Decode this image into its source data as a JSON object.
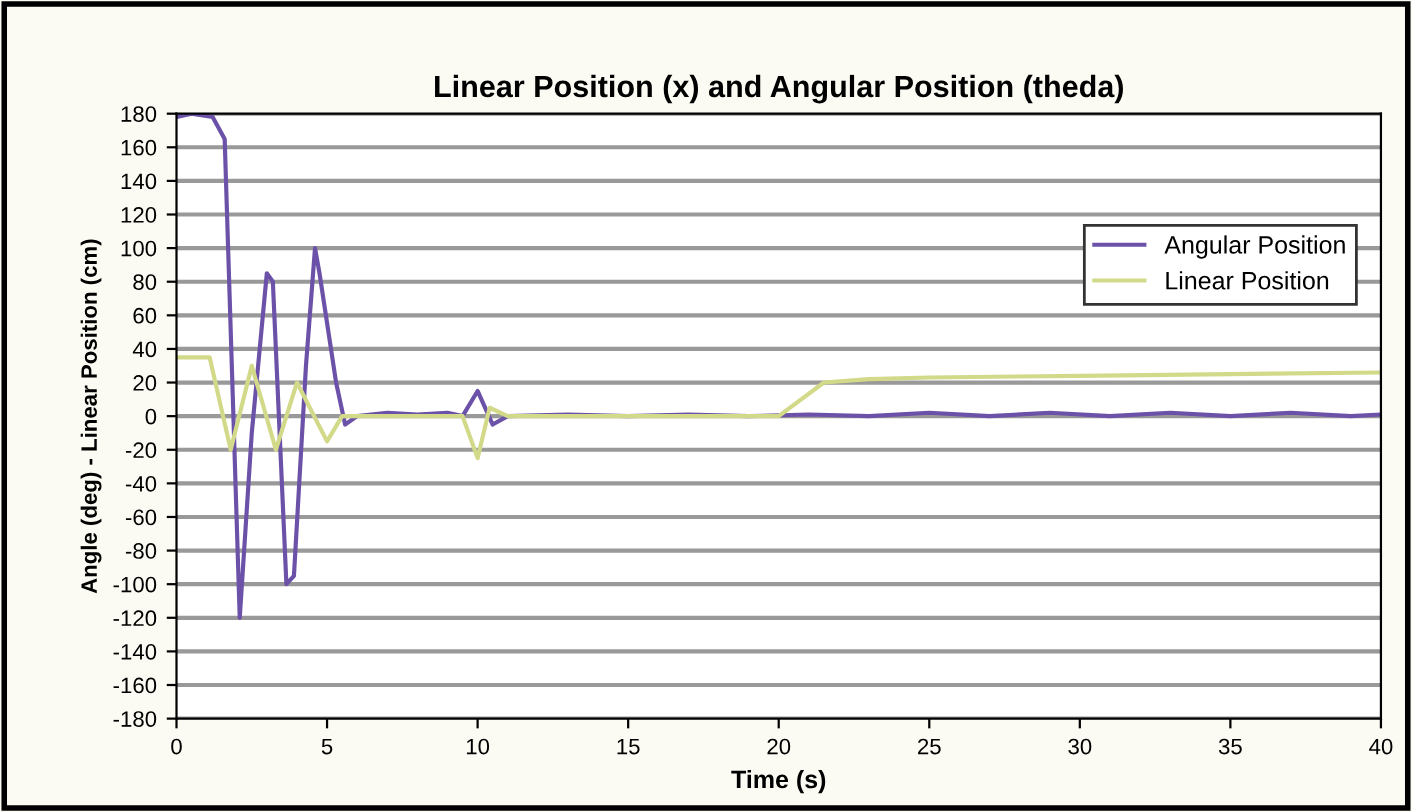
{
  "chart_data": {
    "type": "line",
    "title": "Linear Position (x) and Angular Position (theda)",
    "xlabel": "Time (s)",
    "ylabel": "Angle (deg) - Linear Position (cm)",
    "xlim": [
      0,
      40
    ],
    "xticks": [
      0,
      5,
      10,
      15,
      20,
      25,
      30,
      35,
      40
    ],
    "ylim": [
      -180,
      180
    ],
    "yticks": [
      -180,
      -160,
      -140,
      -120,
      -100,
      -80,
      -60,
      -40,
      -20,
      0,
      20,
      40,
      60,
      80,
      100,
      120,
      140,
      160,
      180
    ],
    "grid": "y",
    "legend": "right",
    "line_style": "solid",
    "marker": "none",
    "series": [
      {
        "name": "Angular Position",
        "color": "#6b52a8",
        "x": [
          0,
          0.5,
          1.2,
          1.6,
          2.1,
          2.5,
          3.0,
          3.2,
          3.65,
          3.9,
          4.3,
          4.6,
          4.75,
          5.3,
          5.6,
          6,
          7,
          8,
          9,
          9.5,
          10,
          10.5,
          11,
          13,
          15,
          17,
          19,
          21,
          23,
          25,
          27,
          29,
          31,
          33,
          35,
          37,
          39,
          40
        ],
        "values": [
          178,
          180,
          178,
          165,
          -120,
          -10,
          85,
          80,
          -100,
          -95,
          30,
          100,
          85,
          20,
          -5,
          0,
          2,
          1,
          2,
          0,
          15,
          -5,
          0,
          1,
          0,
          1,
          0,
          1,
          0,
          2,
          0,
          2,
          0,
          2,
          0,
          2,
          0,
          1
        ]
      },
      {
        "name": "Linear Position",
        "color": "#d2da8a",
        "x": [
          0,
          1.1,
          1.8,
          2.5,
          3.3,
          4.0,
          5.0,
          5.5,
          7,
          9.5,
          10,
          10.4,
          11,
          15,
          20,
          21.5,
          23,
          25,
          30,
          35,
          40
        ],
        "values": [
          35,
          35,
          -20,
          30,
          -20,
          20,
          -15,
          0,
          0,
          0,
          -25,
          5,
          0,
          0,
          0,
          20,
          22,
          23,
          24,
          25,
          26
        ]
      }
    ]
  }
}
